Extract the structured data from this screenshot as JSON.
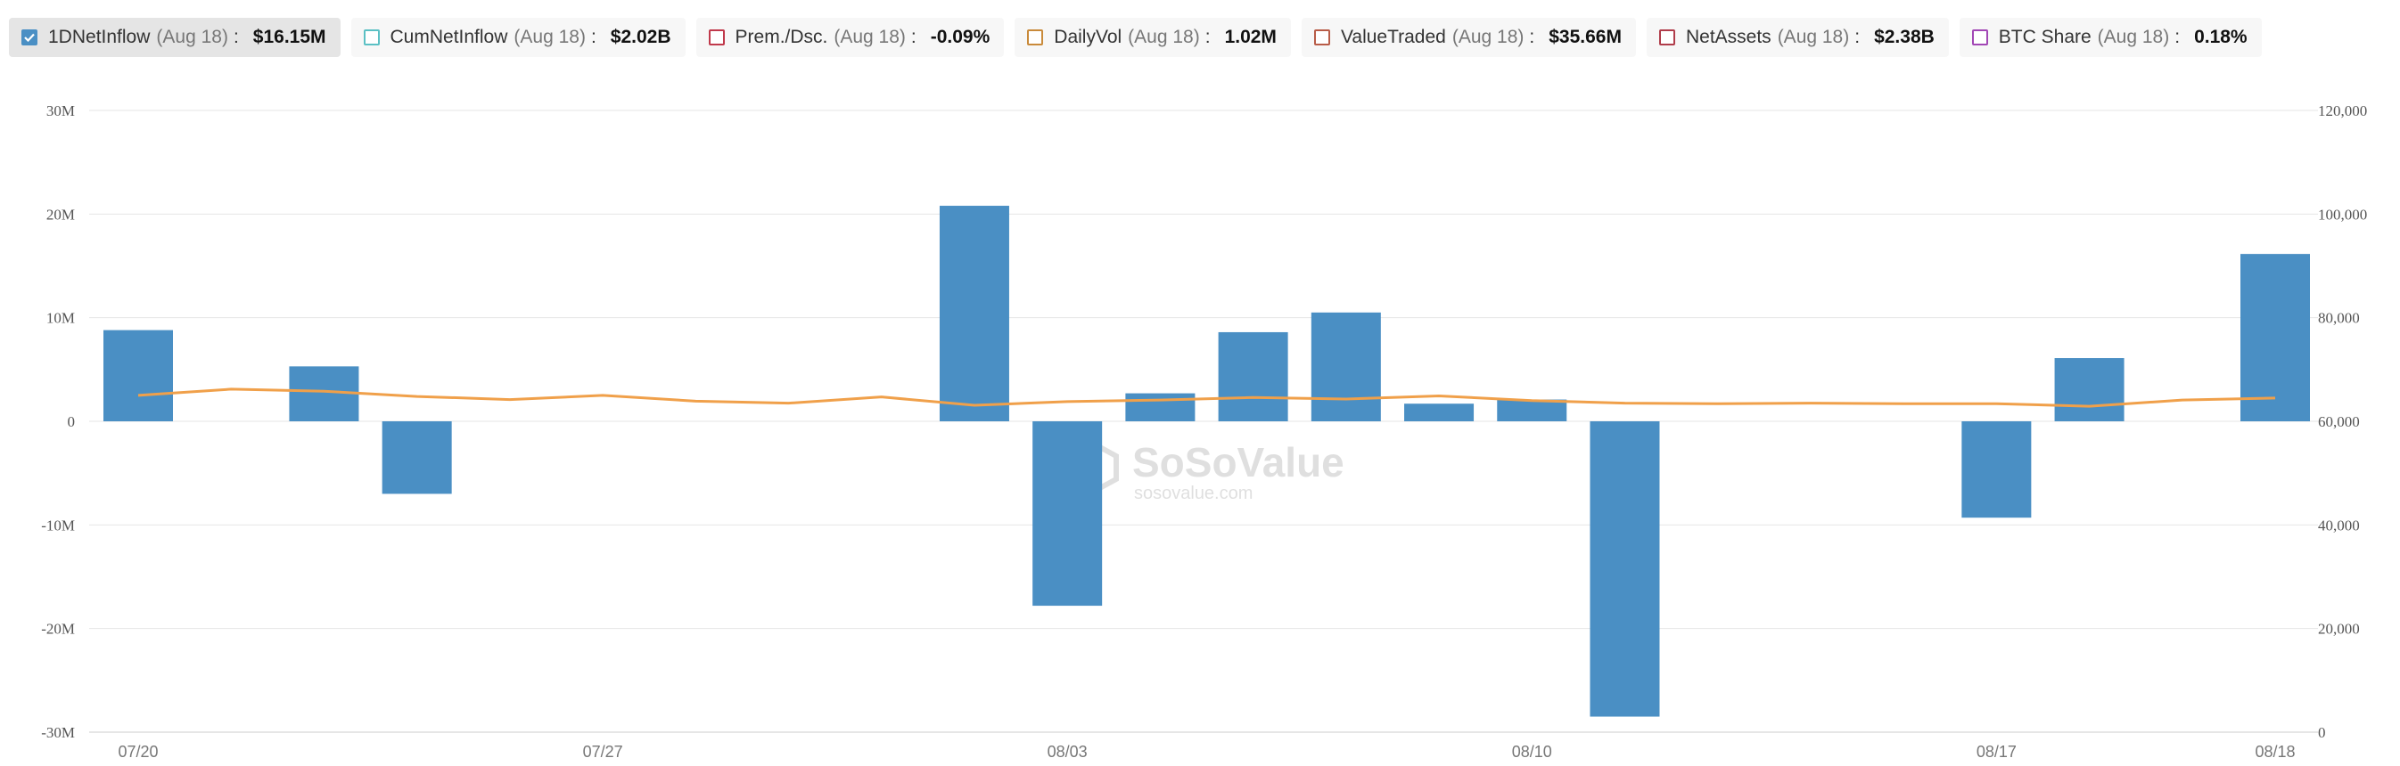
{
  "legend": [
    {
      "label": "1DNetInflow",
      "date": "(Aug 18)",
      "value": "$16.15M",
      "color": "#4a8fc4",
      "checked": true
    },
    {
      "label": "CumNetInflow",
      "date": "(Aug 18)",
      "value": "$2.02B",
      "color": "#5bc0c4",
      "checked": false
    },
    {
      "label": "Prem./Dsc.",
      "date": "(Aug 18)",
      "value": "-0.09%",
      "color": "#c0394b",
      "checked": false
    },
    {
      "label": "DailyVol",
      "date": "(Aug 18)",
      "value": "1.02M",
      "color": "#c98a3a",
      "checked": false
    },
    {
      "label": "ValueTraded",
      "date": "(Aug 18)",
      "value": "$35.66M",
      "color": "#b85c48",
      "checked": false
    },
    {
      "label": "NetAssets",
      "date": "(Aug 18)",
      "value": "$2.38B",
      "color": "#b03c4a",
      "checked": false
    },
    {
      "label": "BTC Share",
      "date": "(Aug 18)",
      "value": "0.18%",
      "color": "#a247b5",
      "checked": false
    }
  ],
  "watermark": {
    "brand": "SoSoValue",
    "site": "sosovalue.com"
  },
  "colors": {
    "bar": "#4a8fc4",
    "line": "#f0a04a",
    "grid": "#e6e6e6"
  },
  "chart_data": {
    "type": "bar",
    "series": [
      {
        "name": "1DNetInflow",
        "type": "bar",
        "axis": "left",
        "values": [
          8.8,
          null,
          5.3,
          -7.0,
          null,
          null,
          null,
          null,
          null,
          20.8,
          -17.8,
          2.7,
          8.6,
          10.5,
          1.7,
          2.1,
          -28.5,
          null,
          null,
          null,
          -9.3,
          6.1,
          null,
          16.15
        ]
      },
      {
        "type": "line",
        "axis": "right",
        "values": [
          65000,
          66200,
          65800,
          64800,
          64200,
          65000,
          63900,
          63500,
          64700,
          63100,
          63800,
          64100,
          64600,
          64300,
          64900,
          64000,
          63500,
          63400,
          63500,
          63400,
          63400,
          62900,
          64100,
          64500
        ]
      }
    ],
    "x_labels": [
      {
        "index": 0,
        "label": "07/20"
      },
      {
        "index": 5,
        "label": "07/27"
      },
      {
        "index": 10,
        "label": "08/03"
      },
      {
        "index": 15,
        "label": "08/10"
      },
      {
        "index": 20,
        "label": "08/17"
      },
      {
        "index": 23,
        "label": "08/18"
      }
    ],
    "y_left": {
      "min": -30,
      "max": 30,
      "ticks": [
        30,
        20,
        10,
        0,
        -10,
        -20,
        -30
      ],
      "tick_labels": [
        "30M",
        "20M",
        "10M",
        "0",
        "-10M",
        "-20M",
        "-30M"
      ]
    },
    "y_right": {
      "min": 0,
      "max": 120000,
      "ticks": [
        120000,
        100000,
        80000,
        60000,
        40000,
        20000,
        0
      ],
      "tick_labels": [
        "120,000",
        "100,000",
        "80,000",
        "60,000",
        "40,000",
        "20,000",
        "0"
      ]
    },
    "grid": true,
    "legend_position": "top"
  }
}
